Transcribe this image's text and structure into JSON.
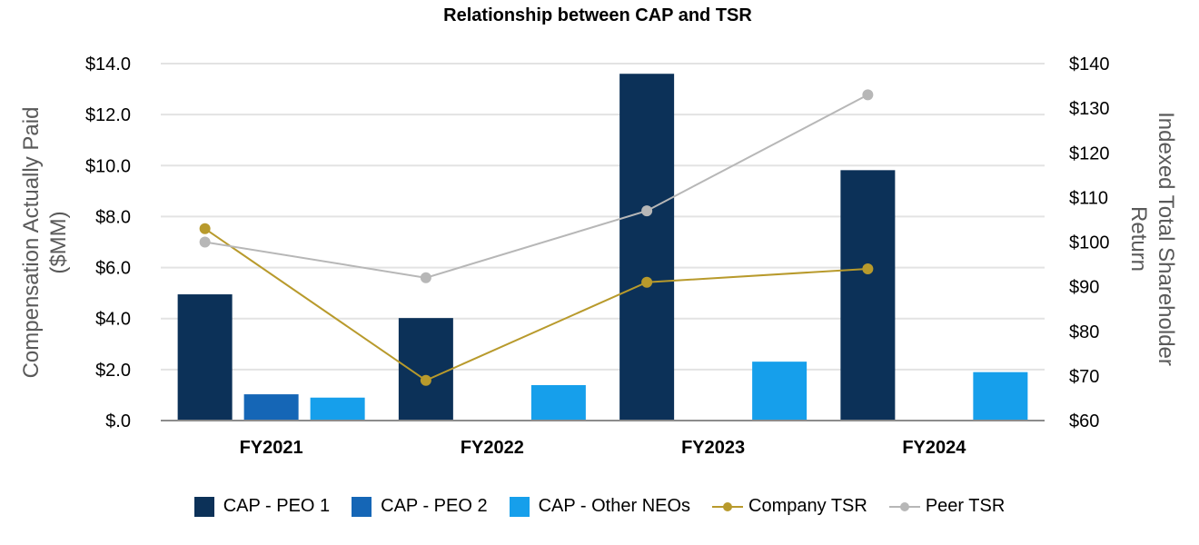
{
  "chart_data": {
    "type": "bar",
    "title": "Relationship between CAP and TSR",
    "categories": [
      "FY2021",
      "FY2022",
      "FY2023",
      "FY2024"
    ],
    "ylabel_left": [
      "Compensation Actually Paid",
      "($MM)"
    ],
    "ylabel_right": [
      "Indexed Total Shareholder",
      "Return"
    ],
    "ylim_left": [
      0,
      14
    ],
    "ylim_right": [
      60,
      140
    ],
    "yticks_left": [
      "$14.0",
      "$12.0",
      "$10.0",
      "$8.0",
      "$6.0",
      "$4.0",
      "$2.0",
      "$.0"
    ],
    "yticks_right": [
      "$140",
      "$130",
      "$120",
      "$110",
      "$100",
      "$90",
      "$80",
      "$70",
      "$60"
    ],
    "grid": true,
    "legend_position": "bottom",
    "bar_series": [
      {
        "name": "CAP - PEO 1",
        "color": "#0c3158",
        "values": [
          4.95,
          4.02,
          13.6,
          9.82
        ]
      },
      {
        "name": "CAP - PEO 2",
        "color": "#1566b6",
        "values": [
          1.03,
          null,
          null,
          null
        ]
      },
      {
        "name": "CAP - Other NEOs",
        "color": "#169feb",
        "values": [
          0.9,
          1.39,
          2.31,
          1.9
        ]
      }
    ],
    "line_series": [
      {
        "name": "Company TSR",
        "color": "#b89a2c",
        "axis": "right",
        "values": [
          103,
          69,
          91,
          94
        ]
      },
      {
        "name": "Peer TSR",
        "color": "#b7b7b7",
        "axis": "right",
        "values": [
          100,
          92,
          107,
          133
        ]
      }
    ]
  }
}
